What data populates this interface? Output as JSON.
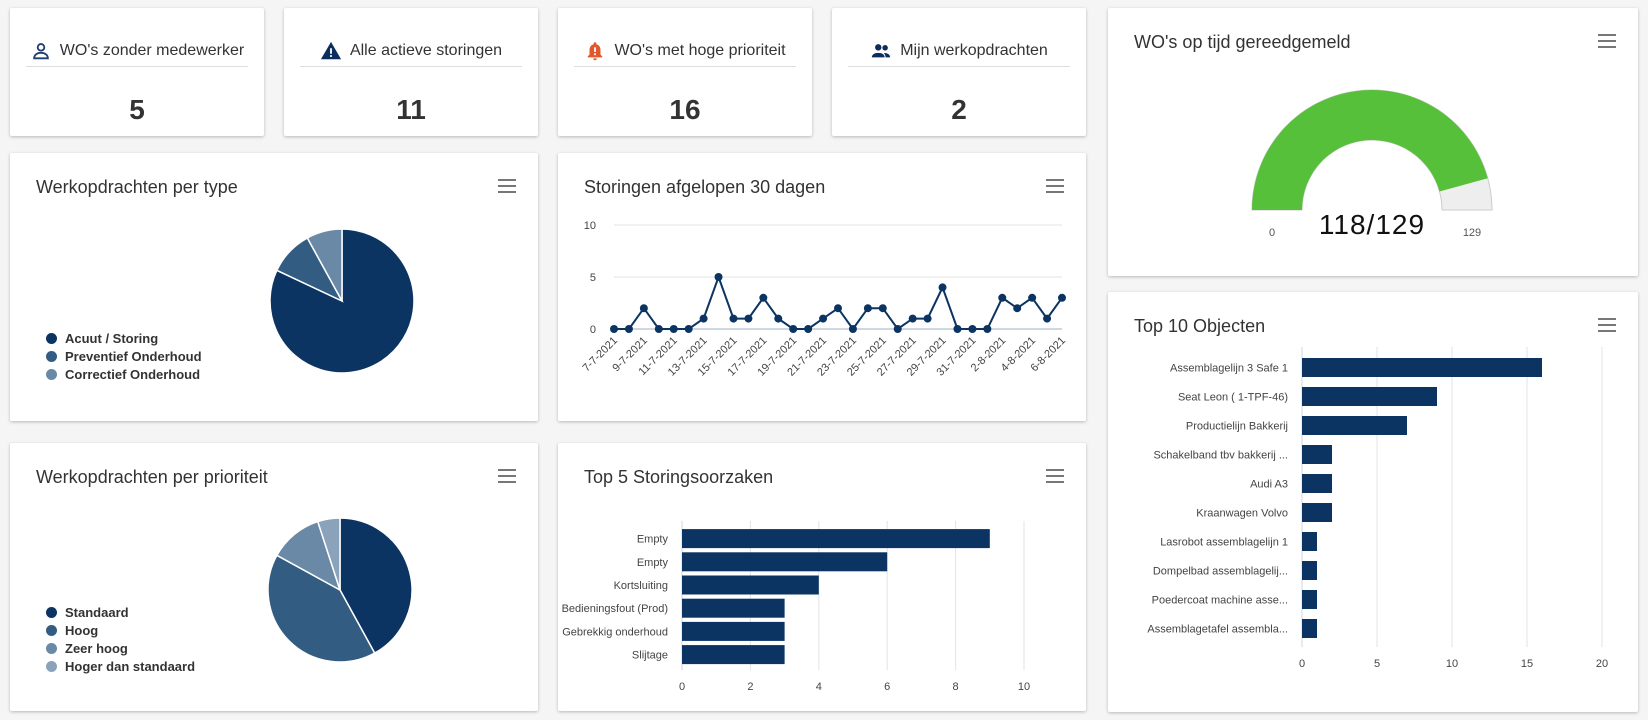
{
  "kpis": [
    {
      "label": "WO's zonder medewerker",
      "value": "5",
      "icon": "person-icon",
      "color": "#1f3e73"
    },
    {
      "label": "Alle actieve storingen",
      "value": "11",
      "icon": "warning-icon",
      "color": "#0d2d5e"
    },
    {
      "label": "WO's met hoge prioriteit",
      "value": "16",
      "icon": "alarm-icon",
      "color": "#e2572c"
    },
    {
      "label": "Mijn werkopdrachten",
      "value": "2",
      "icon": "people-icon",
      "color": "#0d2d5e"
    }
  ],
  "gauge": {
    "title": "WO's op tijd gereedgemeld",
    "display": "118/129",
    "value": 118,
    "max": 129,
    "min_label": "0",
    "max_label": "129",
    "color_fill": "#57c03b",
    "color_rest": "#eeeeee"
  },
  "pie_type": {
    "title": "Werkopdrachten per type",
    "legend": [
      "Acuut / Storing",
      "Preventief Onderhoud",
      "Correctief Onderhoud"
    ],
    "values": [
      82,
      10,
      8
    ],
    "colors": [
      "#0b3462",
      "#335c82",
      "#6a89a6"
    ]
  },
  "pie_prio": {
    "title": "Werkopdrachten per prioriteit",
    "legend": [
      "Standaard",
      "Hoog",
      "Zeer hoog",
      "Hoger dan standaard"
    ],
    "values": [
      42,
      41,
      12,
      5
    ],
    "colors": [
      "#0b3462",
      "#335c82",
      "#6a89a6",
      "#8aa3bb"
    ]
  },
  "line": {
    "title": "Storingen afgelopen 30 dagen",
    "yticks": [
      "10",
      "5",
      "0"
    ],
    "ylim": [
      0,
      10
    ],
    "x": [
      "7-7-2021",
      "8-7-2021",
      "9-7-2021",
      "10-7-2021",
      "11-7-2021",
      "12-7-2021",
      "13-7-2021",
      "14-7-2021",
      "15-7-2021",
      "16-7-2021",
      "17-7-2021",
      "18-7-2021",
      "19-7-2021",
      "20-7-2021",
      "21-7-2021",
      "22-7-2021",
      "23-7-2021",
      "24-7-2021",
      "25-7-2021",
      "26-7-2021",
      "27-7-2021",
      "28-7-2021",
      "29-7-2021",
      "30-7-2021",
      "31-7-2021",
      "1-8-2021",
      "2-8-2021",
      "3-8-2021",
      "4-8-2021",
      "5-8-2021",
      "6-8-2021"
    ],
    "values": [
      0,
      0,
      2,
      0,
      0,
      0,
      1,
      5,
      1,
      1,
      3,
      1,
      0,
      0,
      1,
      2,
      0,
      2,
      2,
      0,
      1,
      1,
      4,
      0,
      0,
      0,
      3,
      2,
      3,
      1,
      3
    ],
    "xlabels": [
      "7-7-2021",
      "9-7-2021",
      "11-7-2021",
      "13-7-2021",
      "15-7-2021",
      "17-7-2021",
      "19-7-2021",
      "21-7-2021",
      "23-7-2021",
      "25-7-2021",
      "27-7-2021",
      "29-7-2021",
      "31-7-2021",
      "2-8-2021",
      "4-8-2021",
      "6-8-2021"
    ],
    "color": "#0b3462"
  },
  "top5": {
    "title": "Top 5 Storingsoorzaken",
    "categories": [
      "Empty",
      "Empty",
      "Kortsluiting",
      "Bedieningsfout (Prod)",
      "Gebrekkig onderhoud",
      "Slijtage"
    ],
    "values": [
      9,
      6,
      4,
      3,
      3,
      3
    ],
    "xticks": [
      "0",
      "2",
      "4",
      "6",
      "8",
      "10"
    ],
    "xlim": [
      0,
      10
    ],
    "color": "#0b3462"
  },
  "top10": {
    "title": "Top 10 Objecten",
    "categories": [
      "Assemblagelijn 3 Safe 1",
      "Seat Leon ( 1-TPF-46)",
      "Productielijn Bakkerij",
      "Schakelband tbv bakkerij ...",
      "Audi A3",
      "Kraanwagen Volvo",
      "Lasrobot assemblagelijn 1",
      "Dompelbad assemblagelij...",
      "Poedercoat machine asse...",
      "Assemblagetafel assembla..."
    ],
    "values": [
      16,
      9,
      7,
      2,
      2,
      2,
      1,
      1,
      1,
      1
    ],
    "xticks": [
      "0",
      "5",
      "10",
      "15",
      "20"
    ],
    "xlim": [
      0,
      20
    ],
    "color": "#0b3462"
  }
}
